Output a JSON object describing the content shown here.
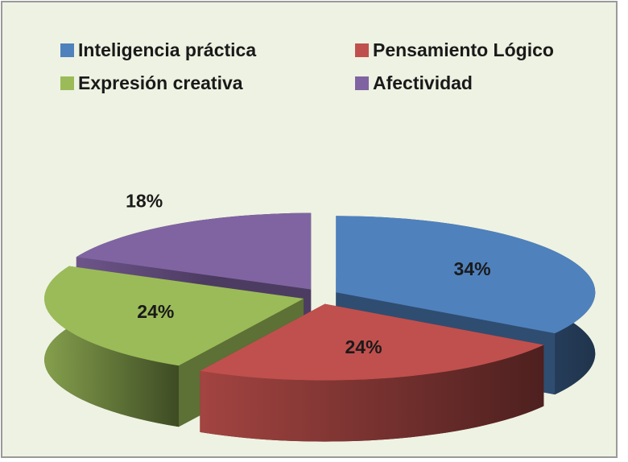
{
  "chart_data": {
    "type": "pie",
    "categories": [
      "Inteligencia práctica",
      "Pensamiento Lógico",
      "Expresión creativa",
      "Afectividad"
    ],
    "values": [
      34,
      24,
      24,
      18
    ],
    "value_labels": [
      "34%",
      "24%",
      "24%",
      "18%"
    ],
    "colors": [
      "#4f81bd",
      "#c0504d",
      "#9bbb59",
      "#8064a2"
    ],
    "legend": "top"
  }
}
